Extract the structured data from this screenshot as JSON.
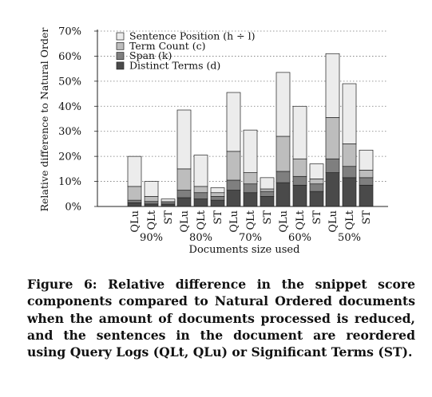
{
  "chart_data": {
    "type": "bar",
    "stacked": true,
    "ylabel": "Relative difference to Natural Order",
    "xlabel": "Documents size used",
    "yticks": [
      "0%",
      "10%",
      "20%",
      "30%",
      "40%",
      "50%",
      "60%",
      "70%"
    ],
    "ylim": [
      0,
      70
    ],
    "grid": "horizontal dotted",
    "legend_position": "top-left",
    "groups": [
      "90%",
      "80%",
      "70%",
      "60%",
      "50%"
    ],
    "categories": [
      "QLu",
      "QLt",
      "ST"
    ],
    "series": [
      {
        "name": "Distinct Terms (d)",
        "color": "#4a4a4a",
        "values": [
          [
            1.5,
            1.0,
            0.8
          ],
          [
            3.5,
            3.0,
            2.5
          ],
          [
            6.5,
            5.5,
            4.0
          ],
          [
            9.5,
            8.5,
            6.0
          ],
          [
            13.5,
            11.5,
            8.5
          ]
        ]
      },
      {
        "name": "Span (k)",
        "color": "#7f7f7f",
        "values": [
          [
            1.0,
            1.0,
            0.7
          ],
          [
            3.0,
            2.5,
            1.5
          ],
          [
            4.0,
            3.5,
            2.0
          ],
          [
            4.5,
            3.5,
            3.0
          ],
          [
            5.5,
            4.5,
            3.0
          ]
        ]
      },
      {
        "name": "Term Count (c)",
        "color": "#bdbdbd",
        "values": [
          [
            5.5,
            2.0,
            0.5
          ],
          [
            8.5,
            2.5,
            1.5
          ],
          [
            11.5,
            4.5,
            1.0
          ],
          [
            14.0,
            7.0,
            2.0
          ],
          [
            16.5,
            9.0,
            3.0
          ]
        ]
      },
      {
        "name": "Sentence Position (h ÷ l)",
        "color": "#ececec",
        "values": [
          [
            12.0,
            6.0,
            1.0
          ],
          [
            23.5,
            12.5,
            2.0
          ],
          [
            23.5,
            17.0,
            4.5
          ],
          [
            25.5,
            21.0,
            6.0
          ],
          [
            25.5,
            24.0,
            8.0
          ]
        ]
      }
    ]
  },
  "caption": "Figure 6: Relative difference in the snippet score components compared to Natural Ordered documents when the amount of documents processed is reduced, and the sentences in the document are reordered using Query Logs (QLt, QLu) or Significant Terms (ST)."
}
